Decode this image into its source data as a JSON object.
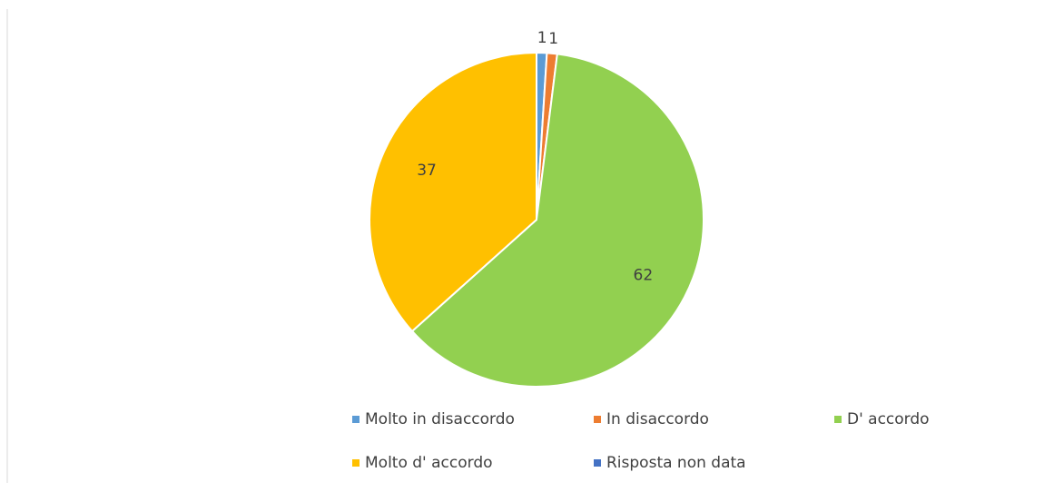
{
  "chart_data": {
    "type": "pie",
    "categories": [
      "Molto in disaccordo",
      "In disaccordo",
      "D' accordo",
      "Molto d' accordo",
      "Risposta non data"
    ],
    "values": [
      1,
      1,
      62,
      37,
      0
    ],
    "colors": [
      "#5b9bd5",
      "#ed7d31",
      "#92d050",
      "#ffc000",
      "#4472c4"
    ],
    "legend": "bottom"
  }
}
